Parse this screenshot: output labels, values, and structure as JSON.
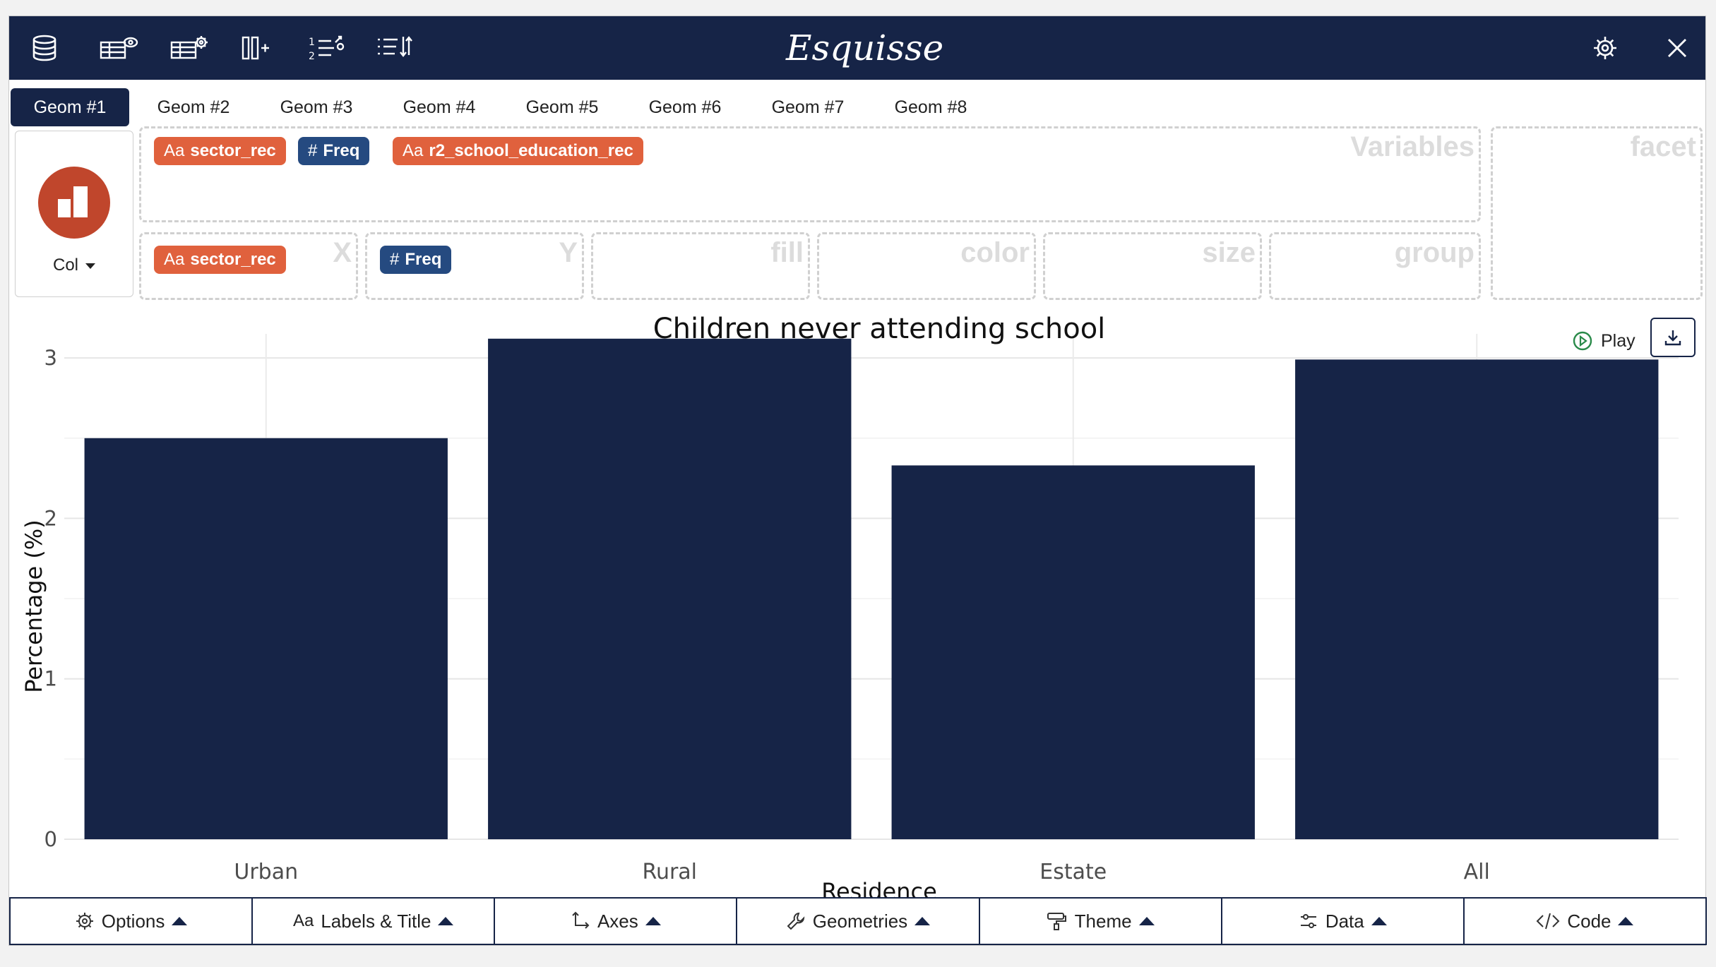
{
  "header": {
    "title": "Esquisse",
    "icons": [
      "database-icon",
      "table-view-icon",
      "table-settings-icon",
      "add-column-icon",
      "reorder-list-icon",
      "sort-list-icon",
      "settings-gear-icon",
      "close-icon"
    ]
  },
  "geom_tabs": [
    "Geom #1",
    "Geom #2",
    "Geom #3",
    "Geom #4",
    "Geom #5",
    "Geom #6",
    "Geom #7",
    "Geom #8"
  ],
  "geom_selector": {
    "label": "Col"
  },
  "variables": {
    "zone_label": "Variables",
    "facet_label": "facet",
    "type_str": "Aa",
    "type_num": "#",
    "items": [
      {
        "name": "sector_rec",
        "type": "Aa"
      },
      {
        "name": "Freq",
        "type": "#"
      },
      {
        "name": "r2_school_education_rec",
        "type": "Aa"
      }
    ]
  },
  "aesthetics": {
    "x": {
      "label": "X",
      "value": "sector_rec",
      "type": "Aa"
    },
    "y": {
      "label": "Y",
      "value": "Freq",
      "type": "#"
    },
    "fill": {
      "label": "fill"
    },
    "color": {
      "label": "color"
    },
    "size": {
      "label": "size"
    },
    "group": {
      "label": "group"
    }
  },
  "plot_controls": {
    "play_label": "Play"
  },
  "chart_data": {
    "type": "bar",
    "title": "Children never attending school",
    "xlabel": "Residence",
    "ylabel": "Percentage (%)",
    "categories": [
      "Urban",
      "Rural",
      "Estate",
      "All"
    ],
    "values": [
      2.5,
      3.12,
      2.33,
      2.99
    ],
    "ylim": [
      0,
      3.15
    ],
    "yticks": [
      0,
      1,
      2,
      3
    ],
    "grid": true,
    "bar_color": "#162447"
  },
  "bottom_tabs": [
    {
      "label": "Options",
      "icon": "gear-icon"
    },
    {
      "label": "Labels & Title",
      "icon": "text-aa-icon"
    },
    {
      "label": "Axes",
      "icon": "axes-icon"
    },
    {
      "label": "Geometries",
      "icon": "wrench-icon"
    },
    {
      "label": "Theme",
      "icon": "paint-roller-icon"
    },
    {
      "label": "Data",
      "icon": "sliders-icon"
    },
    {
      "label": "Code",
      "icon": "code-icon"
    }
  ],
  "colors": {
    "header_bg": "#162447",
    "string_badge": "#e0613d",
    "numeric_badge": "#254a80",
    "geom_circle": "#c0462c"
  }
}
